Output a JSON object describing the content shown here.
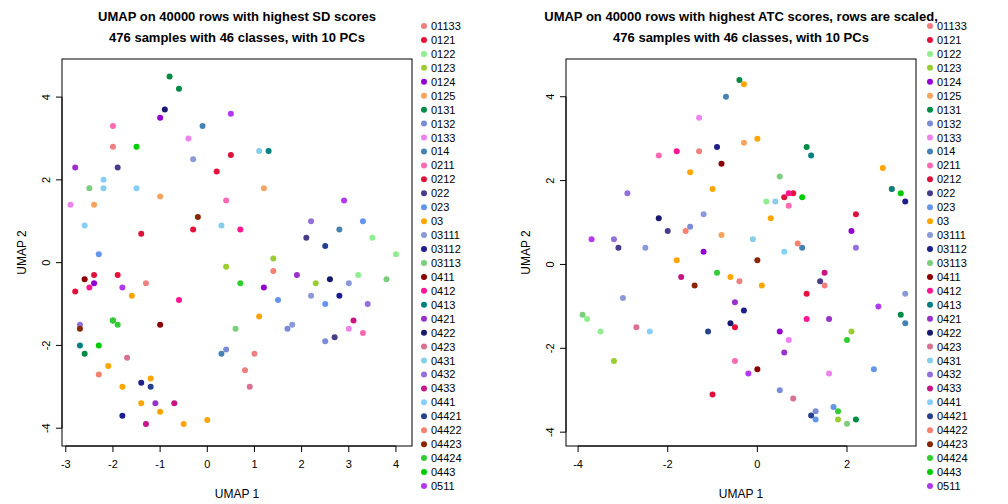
{
  "chart_data": [
    {
      "type": "scatter",
      "title": "UMAP on 40000 rows with highest SD scores",
      "subtitle": "476 samples with 46 classes, with 10 PCs",
      "x_label": "UMAP 1",
      "y_label": "UMAP 2",
      "xlim": [
        -3.08,
        4.34
      ],
      "ylim": [
        -4.43,
        4.92
      ],
      "xticks": [
        -3,
        -2,
        -1,
        0,
        1,
        2,
        3,
        4
      ],
      "yticks": [
        -4,
        -2,
        0,
        2,
        4
      ],
      "legend": "right",
      "marker": "circle",
      "series": [
        {
          "name": "01133",
          "color": "#f08080",
          "x": [
            -1.3,
            0.8,
            -2.0,
            1.0
          ],
          "y": [
            -0.5,
            -2.6,
            2.8,
            -2.2
          ]
        },
        {
          "name": "0121",
          "color": "#e8103a",
          "x": [
            -2.8,
            -0.3,
            0.2,
            -1.9
          ],
          "y": [
            -0.7,
            0.8,
            2.2,
            -0.3
          ]
        },
        {
          "name": "0122",
          "color": "#90ee90",
          "x": [
            3.5,
            4.0,
            3.2
          ],
          "y": [
            0.6,
            0.2,
            -0.3
          ]
        },
        {
          "name": "0123",
          "color": "#9acd32",
          "x": [
            0.4,
            1.4,
            2.3
          ],
          "y": [
            -0.1,
            0.1,
            -0.5
          ]
        },
        {
          "name": "0124",
          "color": "#9400d3",
          "x": [
            -1.0,
            -2.4,
            1.2
          ],
          "y": [
            3.5,
            -0.5,
            -0.6
          ]
        },
        {
          "name": "0125",
          "color": "#f4a460",
          "x": [
            -1.0,
            1.2,
            -2.4
          ],
          "y": [
            1.6,
            1.8,
            1.4
          ]
        },
        {
          "name": "0131",
          "color": "#008b45",
          "x": [
            -0.8,
            -2.6,
            -2.0,
            -0.6
          ],
          "y": [
            4.5,
            -2.2,
            -1.4,
            4.2
          ]
        },
        {
          "name": "0132",
          "color": "#7a8cd8",
          "x": [
            1.7,
            2.5,
            0.4
          ],
          "y": [
            -1.6,
            -1.9,
            -2.1
          ]
        },
        {
          "name": "0133",
          "color": "#ee82ee",
          "x": [
            -0.4,
            3.0,
            -2.9
          ],
          "y": [
            3.0,
            -1.6,
            1.4
          ]
        },
        {
          "name": "014",
          "color": "#4682b4",
          "x": [
            -0.1,
            0.3,
            2.8
          ],
          "y": [
            3.3,
            -2.2,
            0.8
          ]
        },
        {
          "name": "0211",
          "color": "#ff69b4",
          "x": [
            -2.0,
            0.4,
            3.3
          ],
          "y": [
            3.3,
            1.5,
            -1.7
          ]
        },
        {
          "name": "0212",
          "color": "#dc143c",
          "x": [
            -2.4,
            -1.4,
            0.5
          ],
          "y": [
            -0.3,
            0.7,
            2.6
          ]
        },
        {
          "name": "022",
          "color": "#483d8b",
          "x": [
            -1.9,
            2.7,
            2.1
          ],
          "y": [
            2.3,
            -1.8,
            0.6
          ]
        },
        {
          "name": "023",
          "color": "#6495ed",
          "x": [
            -2.3,
            1.5,
            2.5,
            3.3
          ],
          "y": [
            0.2,
            -0.9,
            -1.0,
            1.0
          ]
        },
        {
          "name": "03",
          "color": "#ffa500",
          "x": [
            -1.8,
            -1.4,
            -1.2,
            -1.0,
            0.0,
            -0.5,
            -1.6,
            -2.1,
            1.1
          ],
          "y": [
            -3.0,
            -3.4,
            -2.8,
            -3.6,
            -3.8,
            -3.9,
            -0.8,
            -2.5,
            -1.3
          ]
        },
        {
          "name": "03111",
          "color": "#8a9ad8",
          "x": [
            1.8,
            2.2,
            3.0,
            -0.3
          ],
          "y": [
            -1.5,
            -0.8,
            -0.5,
            2.5
          ]
        },
        {
          "name": "03112",
          "color": "#1e1e8c",
          "x": [
            -1.4,
            2.8,
            -1.8
          ],
          "y": [
            -2.9,
            -0.8,
            -3.7
          ]
        },
        {
          "name": "03113",
          "color": "#7ccd7c",
          "x": [
            0.6,
            -2.5,
            3.8
          ],
          "y": [
            -1.6,
            1.8,
            -0.4
          ]
        },
        {
          "name": "0411",
          "color": "#8b0000",
          "x": [
            -2.6,
            -1.0
          ],
          "y": [
            -0.4,
            -1.5
          ]
        },
        {
          "name": "0412",
          "color": "#ff1493",
          "x": [
            -2.5,
            0.7,
            -0.6
          ],
          "y": [
            -0.6,
            0.8,
            -0.9
          ]
        },
        {
          "name": "0413",
          "color": "#008080",
          "x": [
            -2.7,
            1.3
          ],
          "y": [
            -2.0,
            2.7
          ]
        },
        {
          "name": "0421",
          "color": "#9932cc",
          "x": [
            -1.1,
            1.9,
            -2.8
          ],
          "y": [
            -3.4,
            -0.3,
            2.3
          ]
        },
        {
          "name": "0422",
          "color": "#191970",
          "x": [
            2.6,
            -0.9
          ],
          "y": [
            -0.4,
            3.7
          ]
        },
        {
          "name": "0423",
          "color": "#db7093",
          "x": [
            -1.7,
            0.9
          ],
          "y": [
            -2.3,
            -3.0
          ]
        },
        {
          "name": "0431",
          "color": "#87ceeb",
          "x": [
            0.3,
            -2.2,
            1.1
          ],
          "y": [
            0.9,
            1.8,
            2.7
          ]
        },
        {
          "name": "0432",
          "color": "#9370db",
          "x": [
            -2.7,
            2.2,
            3.4
          ],
          "y": [
            -1.5,
            1.0,
            -1.0
          ]
        },
        {
          "name": "0433",
          "color": "#c71585",
          "x": [
            -1.3,
            -0.7,
            3.1
          ],
          "y": [
            -3.9,
            -3.4,
            -1.4
          ]
        },
        {
          "name": "0441",
          "color": "#87cefa",
          "x": [
            -2.2,
            -2.6,
            -1.5
          ],
          "y": [
            2.0,
            0.9,
            1.8
          ]
        },
        {
          "name": "04421",
          "color": "#27408b",
          "x": [
            -1.2,
            2.5
          ],
          "y": [
            -3.0,
            0.4
          ]
        },
        {
          "name": "04422",
          "color": "#fa8072",
          "x": [
            -2.3,
            1.4
          ],
          "y": [
            -2.7,
            -0.2
          ]
        },
        {
          "name": "04423",
          "color": "#8b2500",
          "x": [
            -2.7,
            -0.2
          ],
          "y": [
            -1.6,
            1.1
          ]
        },
        {
          "name": "04424",
          "color": "#32cd32",
          "x": [
            -2.0,
            -1.9,
            0.7
          ],
          "y": [
            -1.4,
            -1.5,
            -0.5
          ]
        },
        {
          "name": "0443",
          "color": "#00cd00",
          "x": [
            -2.3,
            -1.5
          ],
          "y": [
            -2.0,
            2.8
          ]
        },
        {
          "name": "0511",
          "color": "#b23aee",
          "x": [
            -1.8,
            0.5,
            2.9
          ],
          "y": [
            -0.6,
            3.6,
            1.5
          ]
        }
      ]
    },
    {
      "type": "scatter",
      "title": "UMAP on 40000 rows with highest ATC scores, rows are scaled,",
      "subtitle": "476 samples with 46 classes, with 10 PCs",
      "x_label": "UMAP 1",
      "y_label": "UMAP 2",
      "xlim": [
        -4.27,
        3.54
      ],
      "ylim": [
        -4.33,
        4.9
      ],
      "xticks": [
        -4,
        -2,
        0,
        2
      ],
      "yticks": [
        -4,
        -2,
        0,
        2,
        4
      ],
      "legend": "right",
      "marker": "circle",
      "series": [
        {
          "name": "01133",
          "color": "#f08080",
          "x": [
            -0.4,
            1.5,
            -1.3
          ],
          "y": [
            -0.4,
            -0.5,
            2.7
          ]
        },
        {
          "name": "0121",
          "color": "#e8103a",
          "x": [
            0.8,
            1.1,
            -0.5
          ],
          "y": [
            1.7,
            -0.7,
            -1.5
          ]
        },
        {
          "name": "0122",
          "color": "#90ee90",
          "x": [
            -3.8,
            -3.5,
            0.2
          ],
          "y": [
            -1.3,
            -1.6,
            1.5
          ]
        },
        {
          "name": "0123",
          "color": "#9acd32",
          "x": [
            2.1,
            -3.2,
            1.8
          ],
          "y": [
            -1.6,
            -2.3,
            -3.7
          ]
        },
        {
          "name": "0124",
          "color": "#9400d3",
          "x": [
            0.5,
            -1.2,
            2.1
          ],
          "y": [
            -1.6,
            0.3,
            0.8
          ]
        },
        {
          "name": "0125",
          "color": "#f4a460",
          "x": [
            -0.3,
            3.0,
            -0.8
          ],
          "y": [
            2.9,
            1.8,
            0.7
          ]
        },
        {
          "name": "0131",
          "color": "#008b45",
          "x": [
            -0.4,
            1.1,
            2.2,
            3.2
          ],
          "y": [
            4.4,
            2.8,
            -3.7,
            -1.2
          ]
        },
        {
          "name": "0132",
          "color": "#7a8cd8",
          "x": [
            1.3,
            -1.5,
            0.5
          ],
          "y": [
            -3.5,
            0.9,
            -3.0
          ]
        },
        {
          "name": "0133",
          "color": "#ee82ee",
          "x": [
            0.7,
            -1.3,
            1.6
          ],
          "y": [
            -1.8,
            3.5,
            -2.6
          ]
        },
        {
          "name": "014",
          "color": "#4682b4",
          "x": [
            -0.7,
            3.3,
            1.0
          ],
          "y": [
            4.0,
            -1.4,
            0.4
          ]
        },
        {
          "name": "0211",
          "color": "#ff69b4",
          "x": [
            -2.2,
            0.7,
            -0.5
          ],
          "y": [
            2.6,
            1.4,
            -2.3
          ]
        },
        {
          "name": "0212",
          "color": "#dc143c",
          "x": [
            0.6,
            2.2,
            -1.0
          ],
          "y": [
            1.6,
            1.2,
            -3.1
          ]
        },
        {
          "name": "022",
          "color": "#483d8b",
          "x": [
            -2.0,
            -3.1,
            1.4
          ],
          "y": [
            0.8,
            0.4,
            -0.4
          ]
        },
        {
          "name": "023",
          "color": "#6495ed",
          "x": [
            1.3,
            1.7,
            2.6
          ],
          "y": [
            -3.7,
            -3.4,
            -2.5
          ]
        },
        {
          "name": "03",
          "color": "#ffa500",
          "x": [
            -0.3,
            0.0,
            -1.0,
            -0.6,
            -1.5,
            2.8,
            0.3,
            -1.8,
            0.1
          ],
          "y": [
            4.3,
            3.0,
            1.8,
            -0.3,
            2.2,
            2.3,
            1.1,
            0.1,
            -0.5
          ]
        },
        {
          "name": "03111",
          "color": "#8a9ad8",
          "x": [
            -2.5,
            -3.0,
            -1.2,
            3.3
          ],
          "y": [
            0.4,
            -0.8,
            1.2,
            -0.7
          ]
        },
        {
          "name": "03112",
          "color": "#1e1e8c",
          "x": [
            -0.9,
            -0.3,
            3.3
          ],
          "y": [
            2.8,
            -1.1,
            1.5
          ]
        },
        {
          "name": "03113",
          "color": "#7ccd7c",
          "x": [
            0.5,
            -3.9,
            2.0
          ],
          "y": [
            2.1,
            -1.2,
            -3.8
          ]
        },
        {
          "name": "0411",
          "color": "#8b0000",
          "x": [
            0.0,
            -0.8
          ],
          "y": [
            -2.5,
            2.4
          ]
        },
        {
          "name": "0412",
          "color": "#ff1493",
          "x": [
            0.7,
            1.1,
            -1.8
          ],
          "y": [
            1.7,
            -1.3,
            2.7
          ]
        },
        {
          "name": "0413",
          "color": "#008080",
          "x": [
            3.0,
            1.2
          ],
          "y": [
            1.8,
            2.6
          ]
        },
        {
          "name": "0421",
          "color": "#9932cc",
          "x": [
            -0.5,
            1.6,
            0.6
          ],
          "y": [
            -0.9,
            -1.3,
            -2.1
          ]
        },
        {
          "name": "0422",
          "color": "#191970",
          "x": [
            -2.2,
            -0.6
          ],
          "y": [
            1.1,
            -1.4
          ]
        },
        {
          "name": "0423",
          "color": "#db7093",
          "x": [
            0.8,
            -2.7
          ],
          "y": [
            -3.2,
            -1.5
          ]
        },
        {
          "name": "0431",
          "color": "#87ceeb",
          "x": [
            0.4,
            -0.1
          ],
          "y": [
            1.5,
            0.6
          ]
        },
        {
          "name": "0432",
          "color": "#9370db",
          "x": [
            -3.2,
            2.2,
            -2.9
          ],
          "y": [
            0.6,
            0.4,
            1.7
          ]
        },
        {
          "name": "0433",
          "color": "#c71585",
          "x": [
            1.5,
            -1.7
          ],
          "y": [
            -0.2,
            -0.3
          ]
        },
        {
          "name": "0441",
          "color": "#87cefa",
          "x": [
            0.6,
            -2.4
          ],
          "y": [
            0.3,
            -1.6
          ]
        },
        {
          "name": "04421",
          "color": "#27408b",
          "x": [
            1.2,
            -1.1
          ],
          "y": [
            -3.6,
            -1.6
          ]
        },
        {
          "name": "04422",
          "color": "#fa8072",
          "x": [
            -1.6,
            0.9
          ],
          "y": [
            0.8,
            0.5
          ]
        },
        {
          "name": "04423",
          "color": "#8b2500",
          "x": [
            0.0,
            -1.4
          ],
          "y": [
            0.1,
            -0.5
          ]
        },
        {
          "name": "04424",
          "color": "#32cd32",
          "x": [
            2.0,
            1.8,
            -0.9
          ],
          "y": [
            -1.8,
            -3.5,
            -0.2
          ]
        },
        {
          "name": "0443",
          "color": "#00cd00",
          "x": [
            3.2,
            1.0
          ],
          "y": [
            1.7,
            1.6
          ]
        },
        {
          "name": "0511",
          "color": "#b23aee",
          "x": [
            -3.7,
            -0.2,
            2.7
          ],
          "y": [
            0.6,
            -2.6,
            -1.0
          ]
        }
      ]
    }
  ]
}
